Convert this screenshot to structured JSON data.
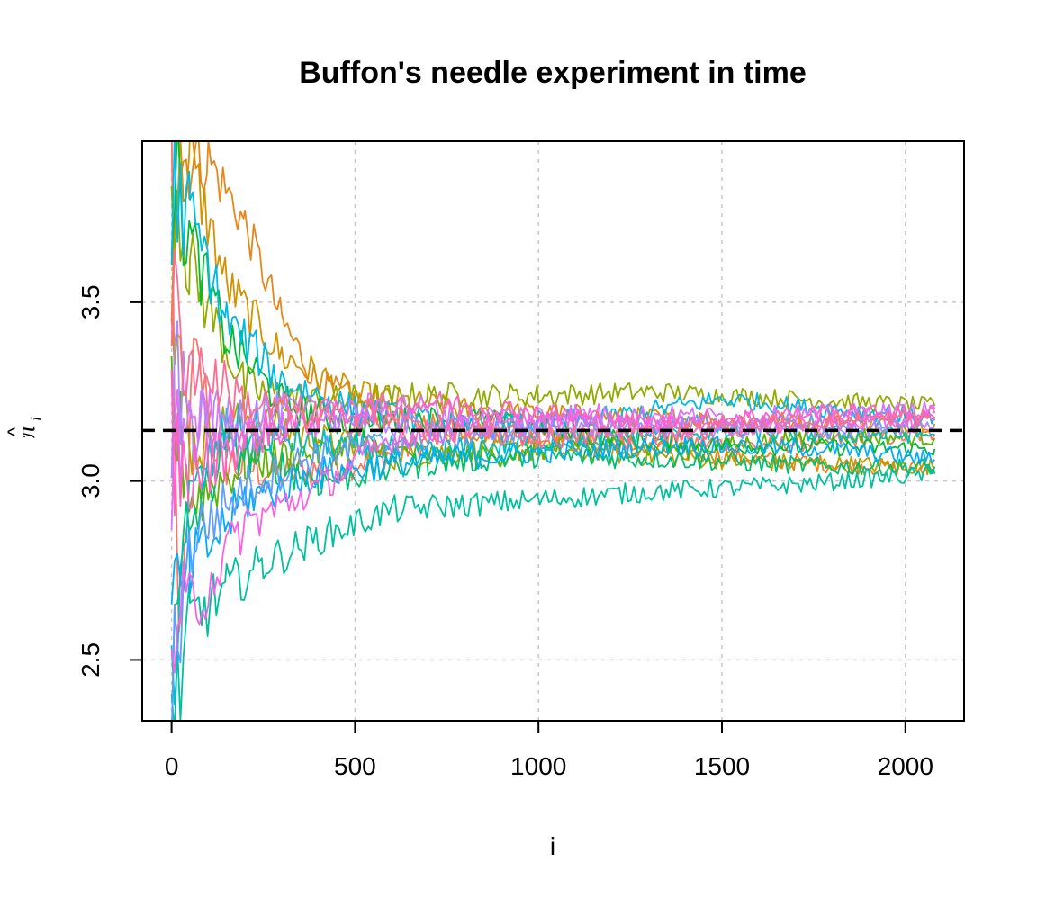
{
  "chart_data": {
    "type": "line",
    "title": "Buffon's needle experiment in time",
    "xlabel": "i",
    "ylabel": "π̂ᵢ",
    "ylabel_parts": {
      "main": "π",
      "hat": "^",
      "sub": "i"
    },
    "xlim": [
      -80,
      2160
    ],
    "ylim": [
      2.33,
      3.95
    ],
    "x_ticks": [
      0,
      500,
      1000,
      1500,
      2000
    ],
    "x_tick_labels": [
      "0",
      "500",
      "1000",
      "1500",
      "2000"
    ],
    "y_ticks": [
      2.5,
      3.0,
      3.5
    ],
    "y_tick_labels": [
      "2.5",
      "3.0",
      "3.5"
    ],
    "grid": true,
    "legend": "none",
    "reference_line": {
      "y": 3.14159,
      "style": "dashed",
      "color": "#000000"
    },
    "series": [
      {
        "color": "#F8766D",
        "points": [
          [
            0,
            3.9
          ],
          [
            20,
            2.4
          ],
          [
            60,
            3.35
          ],
          [
            150,
            3.05
          ],
          [
            300,
            3.02
          ],
          [
            500,
            3.05
          ],
          [
            800,
            3.14
          ],
          [
            1200,
            3.12
          ],
          [
            1600,
            3.1
          ],
          [
            2080,
            3.13
          ]
        ]
      },
      {
        "color": "#E7861B",
        "points": [
          [
            0,
            3.9
          ],
          [
            100,
            3.9
          ],
          [
            200,
            3.72
          ],
          [
            300,
            3.45
          ],
          [
            400,
            3.27
          ],
          [
            600,
            3.18
          ],
          [
            900,
            3.13
          ],
          [
            1200,
            3.1
          ],
          [
            1600,
            3.06
          ],
          [
            2080,
            3.03
          ]
        ]
      },
      {
        "color": "#D39200",
        "points": [
          [
            0,
            3.8
          ],
          [
            50,
            3.9
          ],
          [
            150,
            3.55
          ],
          [
            300,
            3.35
          ],
          [
            500,
            3.24
          ],
          [
            800,
            3.2
          ],
          [
            1200,
            3.18
          ],
          [
            1600,
            3.17
          ],
          [
            2080,
            3.16
          ]
        ]
      },
      {
        "color": "#B79F00",
        "points": [
          [
            0,
            3.4
          ],
          [
            60,
            3.1
          ],
          [
            200,
            3.18
          ],
          [
            400,
            3.12
          ],
          [
            600,
            3.07
          ],
          [
            900,
            3.09
          ],
          [
            1300,
            3.07
          ],
          [
            1700,
            3.05
          ],
          [
            2080,
            3.04
          ]
        ]
      },
      {
        "color": "#93AA00",
        "points": [
          [
            0,
            3.9
          ],
          [
            50,
            3.6
          ],
          [
            200,
            3.26
          ],
          [
            400,
            3.22
          ],
          [
            700,
            3.24
          ],
          [
            1000,
            3.24
          ],
          [
            1300,
            3.25
          ],
          [
            1700,
            3.23
          ],
          [
            2080,
            3.21
          ]
        ]
      },
      {
        "color": "#5EB300",
        "points": [
          [
            0,
            3.2
          ],
          [
            60,
            2.95
          ],
          [
            200,
            3.05
          ],
          [
            500,
            3.1
          ],
          [
            800,
            3.06
          ],
          [
            1100,
            3.1
          ],
          [
            1400,
            3.09
          ],
          [
            1800,
            3.13
          ],
          [
            2080,
            3.12
          ]
        ]
      },
      {
        "color": "#00BA38",
        "points": [
          [
            0,
            3.9
          ],
          [
            40,
            3.7
          ],
          [
            150,
            3.4
          ],
          [
            300,
            3.22
          ],
          [
            500,
            3.16
          ],
          [
            800,
            3.18
          ],
          [
            1100,
            3.13
          ],
          [
            1500,
            3.1
          ],
          [
            2080,
            3.09
          ]
        ]
      },
      {
        "color": "#00BF74",
        "points": [
          [
            0,
            2.4
          ],
          [
            40,
            2.85
          ],
          [
            150,
            3.1
          ],
          [
            400,
            3.0
          ],
          [
            700,
            3.05
          ],
          [
            1000,
            3.07
          ],
          [
            1400,
            3.06
          ],
          [
            1800,
            3.04
          ],
          [
            2080,
            3.04
          ]
        ]
      },
      {
        "color": "#00C19F",
        "points": [
          [
            0,
            2.3
          ],
          [
            50,
            2.6
          ],
          [
            150,
            2.7
          ],
          [
            250,
            2.77
          ],
          [
            400,
            2.84
          ],
          [
            600,
            2.92
          ],
          [
            900,
            2.94
          ],
          [
            1300,
            2.97
          ],
          [
            1700,
            2.99
          ],
          [
            2080,
            3.02
          ]
        ]
      },
      {
        "color": "#00BFC4",
        "points": [
          [
            0,
            2.5
          ],
          [
            40,
            2.9
          ],
          [
            150,
            3.15
          ],
          [
            400,
            3.1
          ],
          [
            700,
            3.08
          ],
          [
            1000,
            3.11
          ],
          [
            1400,
            3.14
          ],
          [
            1800,
            3.13
          ],
          [
            2080,
            3.13
          ]
        ]
      },
      {
        "color": "#00B9E3",
        "points": [
          [
            0,
            3.8
          ],
          [
            50,
            3.75
          ],
          [
            150,
            3.45
          ],
          [
            300,
            3.28
          ],
          [
            500,
            3.2
          ],
          [
            800,
            3.15
          ],
          [
            1200,
            3.18
          ],
          [
            1500,
            3.23
          ],
          [
            1800,
            3.2
          ],
          [
            2080,
            3.18
          ]
        ]
      },
      {
        "color": "#00ADFA",
        "points": [
          [
            0,
            2.6
          ],
          [
            50,
            2.75
          ],
          [
            200,
            2.95
          ],
          [
            400,
            3.02
          ],
          [
            700,
            3.06
          ],
          [
            1000,
            3.08
          ],
          [
            1400,
            3.1
          ],
          [
            1800,
            3.09
          ],
          [
            2080,
            3.06
          ]
        ]
      },
      {
        "color": "#619CFF",
        "points": [
          [
            0,
            2.5
          ],
          [
            60,
            2.85
          ],
          [
            200,
            2.98
          ],
          [
            400,
            3.08
          ],
          [
            700,
            3.12
          ],
          [
            1000,
            3.15
          ],
          [
            1400,
            3.16
          ],
          [
            1800,
            3.16
          ],
          [
            2080,
            3.17
          ]
        ]
      },
      {
        "color": "#AE87FF",
        "points": [
          [
            0,
            3.3
          ],
          [
            60,
            3.15
          ],
          [
            200,
            3.2
          ],
          [
            400,
            3.19
          ],
          [
            600,
            3.16
          ],
          [
            900,
            3.14
          ],
          [
            1300,
            3.15
          ],
          [
            1700,
            3.14
          ],
          [
            2080,
            3.15
          ]
        ]
      },
      {
        "color": "#DB72FB",
        "points": [
          [
            0,
            3.0
          ],
          [
            40,
            3.2
          ],
          [
            200,
            3.14
          ],
          [
            400,
            3.17
          ],
          [
            600,
            3.22
          ],
          [
            800,
            3.18
          ],
          [
            1100,
            3.19
          ],
          [
            1500,
            3.18
          ],
          [
            2080,
            3.2
          ]
        ]
      },
      {
        "color": "#F564E3",
        "points": [
          [
            0,
            2.6
          ],
          [
            60,
            2.65
          ],
          [
            200,
            2.88
          ],
          [
            400,
            2.98
          ],
          [
            600,
            3.12
          ],
          [
            800,
            3.15
          ],
          [
            1100,
            3.17
          ],
          [
            1500,
            3.15
          ],
          [
            2080,
            3.17
          ]
        ]
      },
      {
        "color": "#FF61C3",
        "points": [
          [
            0,
            3.1
          ],
          [
            40,
            3.0
          ],
          [
            200,
            3.12
          ],
          [
            400,
            3.18
          ],
          [
            700,
            3.22
          ],
          [
            1000,
            3.19
          ],
          [
            1300,
            3.16
          ],
          [
            1700,
            3.19
          ],
          [
            2080,
            3.19
          ]
        ]
      },
      {
        "color": "#FF6C91",
        "points": [
          [
            0,
            3.5
          ],
          [
            40,
            3.35
          ],
          [
            200,
            3.22
          ],
          [
            400,
            3.18
          ],
          [
            700,
            3.15
          ],
          [
            1000,
            3.12
          ],
          [
            1400,
            3.14
          ],
          [
            1800,
            3.17
          ],
          [
            2080,
            3.18
          ]
        ]
      }
    ]
  }
}
